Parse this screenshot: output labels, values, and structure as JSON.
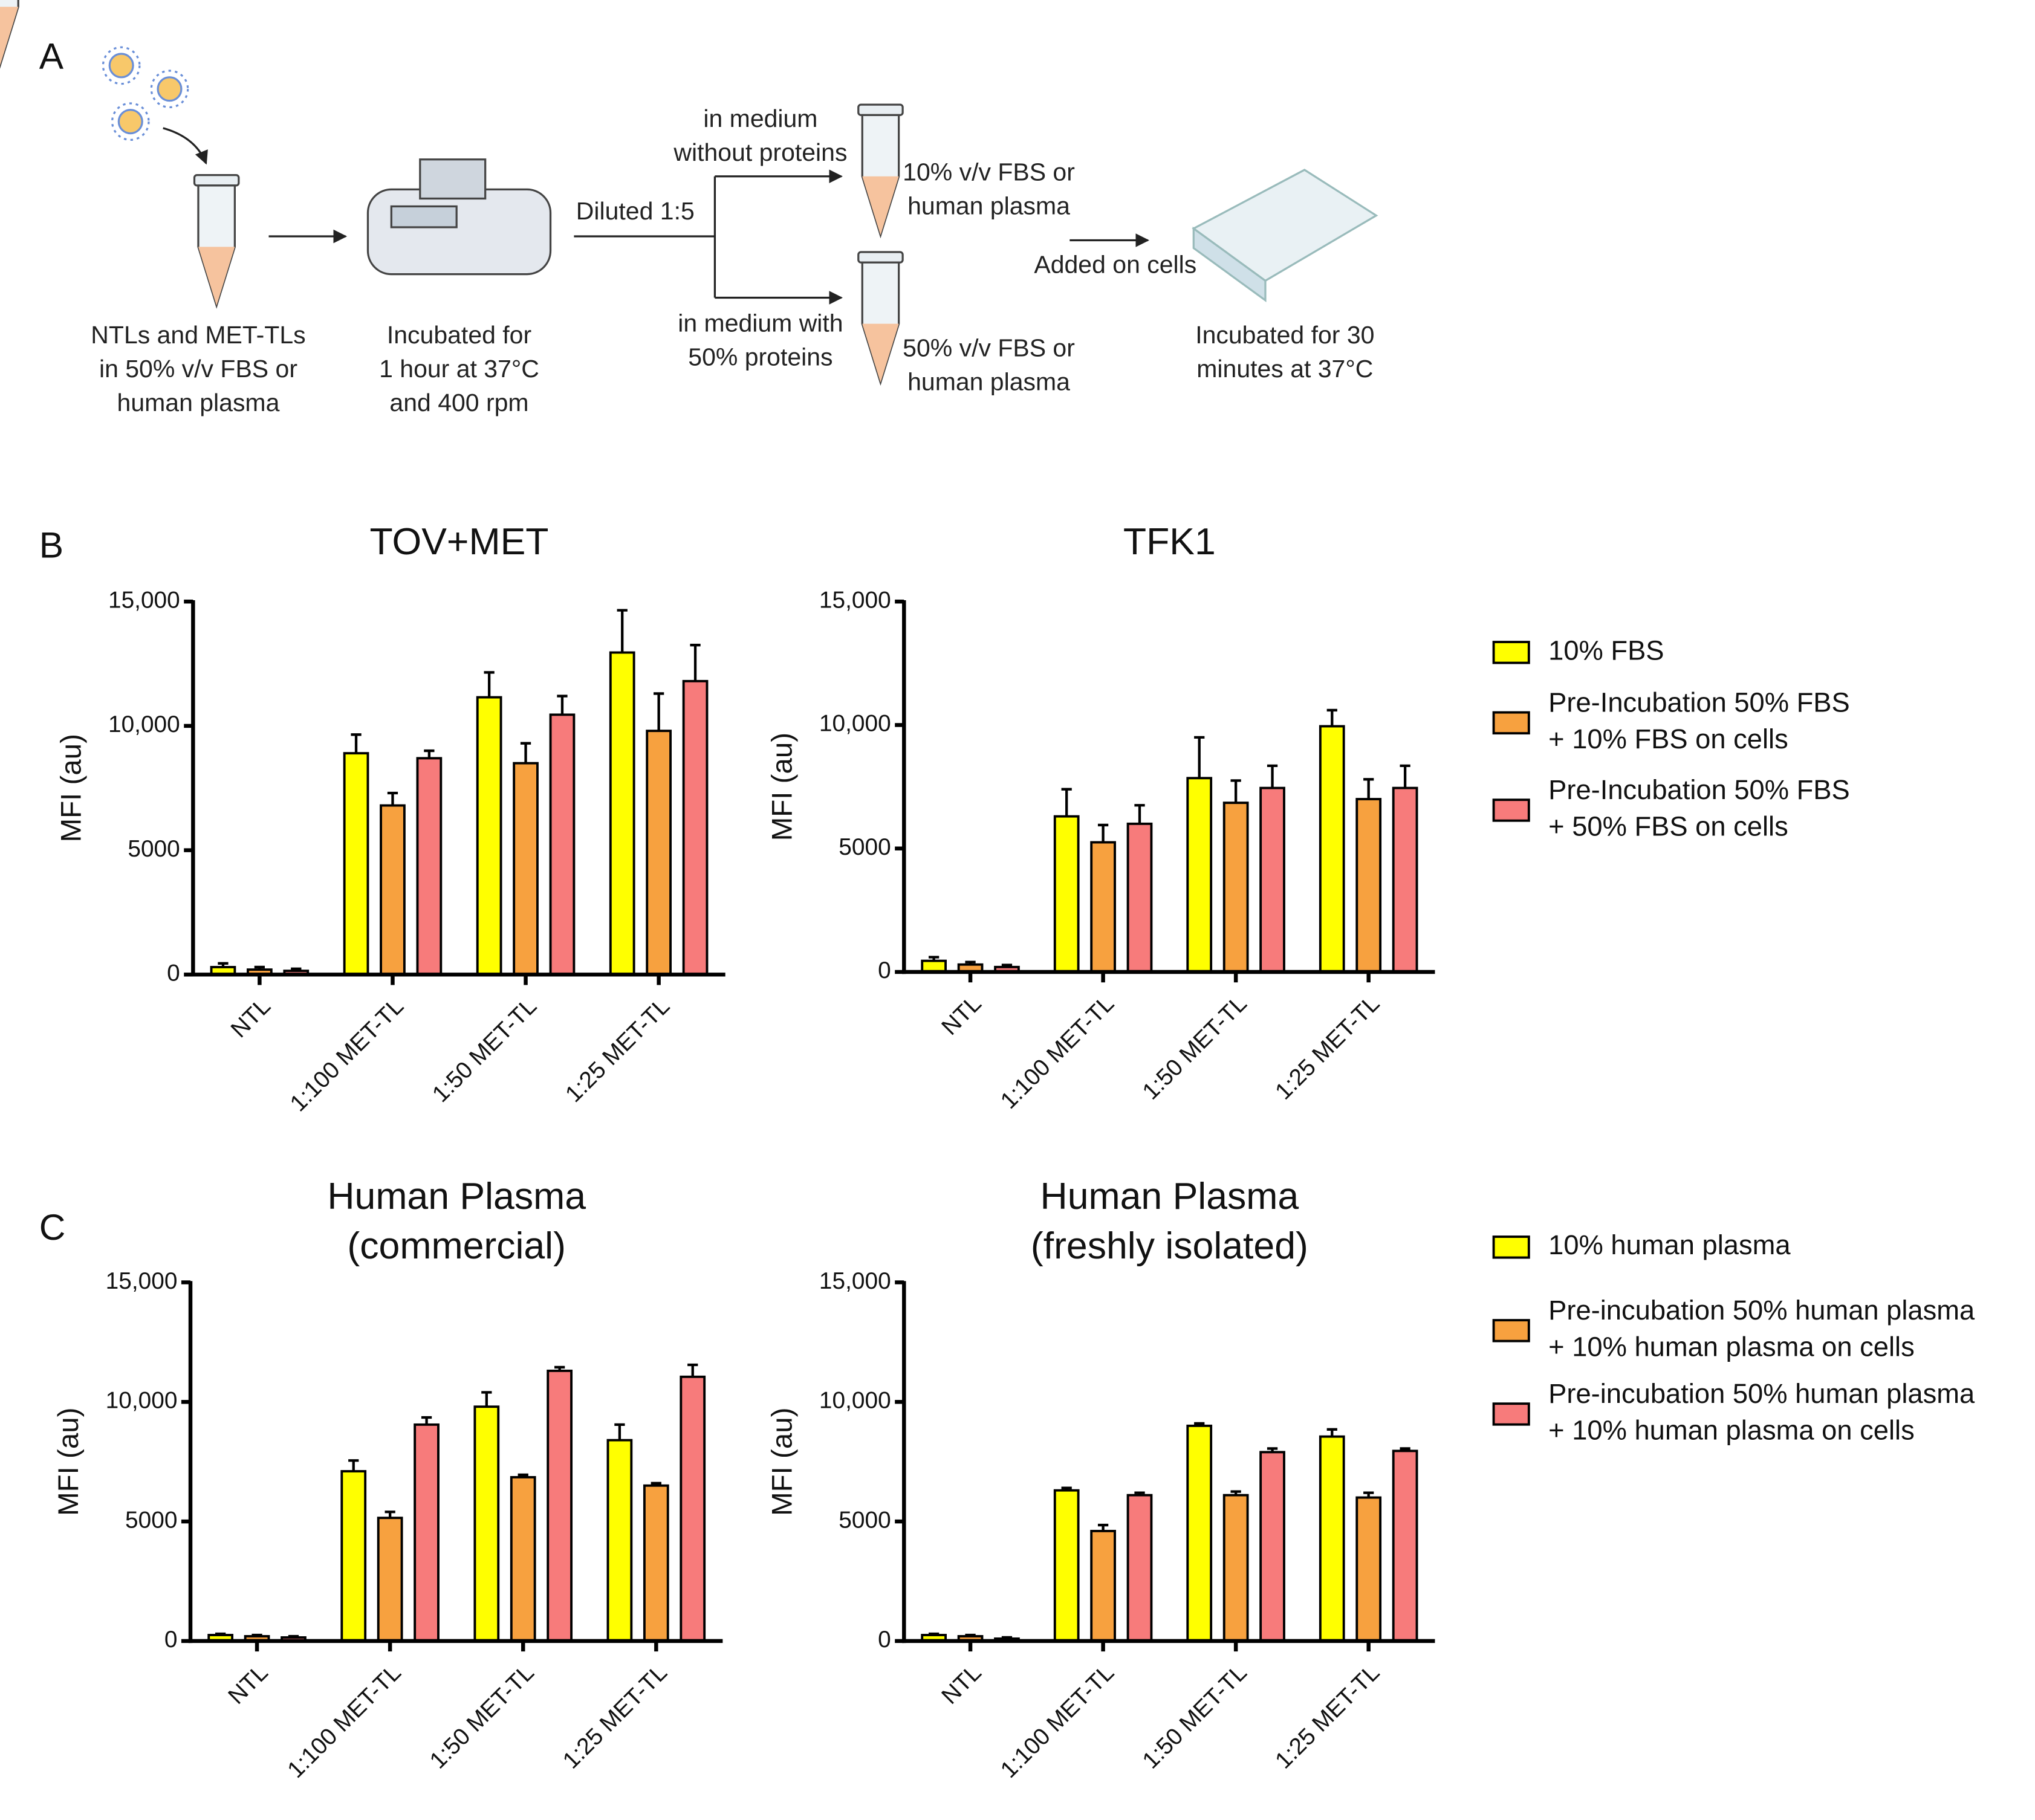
{
  "diagram": {
    "panels": [
      "A",
      "B",
      "C"
    ],
    "labels": [
      [
        "NTLs and MET-TLs",
        "in 50% v/v FBS or",
        "human plasma"
      ],
      [
        "Incubated for",
        "1 hour at 37°C",
        "and 400 rpm"
      ],
      [
        "Diluted 1:5"
      ],
      [
        "in medium",
        "without proteins"
      ],
      [
        "in medium with",
        "50% proteins"
      ],
      [
        "10% v/v FBS or",
        "human plasma"
      ],
      [
        "50% v/v FBS or",
        "human plasma"
      ],
      [
        "Added on cells"
      ],
      [
        "Incubated for 30",
        "minutes at 37°C"
      ]
    ]
  },
  "chart_data": [
    {
      "type": "bar",
      "title": [
        "TOV+MET"
      ],
      "ylabel": "MFI (au)",
      "categories": [
        "NTL",
        "1:100 MET-TL",
        "1:50 MET-TL",
        "1:25 MET-TL"
      ],
      "ylim": [
        0,
        15000
      ],
      "yticks": [
        0,
        5000,
        {
          "value": 10000,
          "label": "10,000"
        },
        {
          "value": 15000,
          "label": "15,000"
        }
      ],
      "series": [
        {
          "name": "10% FBS",
          "color": "#ffff00",
          "values": [
            300,
            8900,
            11150,
            12950
          ],
          "errors": [
            150,
            750,
            1000,
            1700
          ]
        },
        {
          "name": "Pre-Incubation 50% FBS + 10% FBS on cells",
          "color": "#f7a13f",
          "values": [
            200,
            6800,
            8500,
            9800
          ],
          "errors": [
            100,
            500,
            800,
            1500
          ]
        },
        {
          "name": "Pre-Incubation 50% FBS + 50% FBS on cells",
          "color": "#f77b7b",
          "values": [
            150,
            8700,
            10450,
            11800
          ],
          "errors": [
            80,
            300,
            750,
            1450
          ]
        }
      ]
    },
    {
      "type": "bar",
      "title": [
        "TFK1"
      ],
      "ylabel": "MFI (au)",
      "categories": [
        "NTL",
        "1:100 MET-TL",
        "1:50 MET-TL",
        "1:25 MET-TL"
      ],
      "ylim": [
        0,
        15000
      ],
      "yticks": [
        0,
        5000,
        {
          "value": 10000,
          "label": "10,000"
        },
        {
          "value": 15000,
          "label": "15,000"
        }
      ],
      "series": [
        {
          "color": "#ffff00",
          "values": [
            450,
            6300,
            7850,
            9950
          ],
          "errors": [
            150,
            1100,
            1650,
            650
          ]
        },
        {
          "color": "#f7a13f",
          "values": [
            300,
            5250,
            6850,
            7000
          ],
          "errors": [
            100,
            700,
            900,
            800
          ]
        },
        {
          "color": "#f77b7b",
          "values": [
            200,
            6000,
            7450,
            7450
          ],
          "errors": [
            80,
            750,
            900,
            900
          ]
        }
      ]
    },
    {
      "type": "bar",
      "title": [
        "Human Plasma",
        "(commercial)"
      ],
      "ylabel": "MFI (au)",
      "categories": [
        "NTL",
        "1:100 MET-TL",
        "1:50 MET-TL",
        "1:25 MET-TL"
      ],
      "ylim": [
        0,
        15000
      ],
      "yticks": [
        0,
        5000,
        {
          "value": 10000,
          "label": "10,000"
        },
        {
          "value": 15000,
          "label": "15,000"
        }
      ],
      "series": [
        {
          "name": "10% human plasma",
          "color": "#ffff00",
          "values": [
            250,
            7100,
            9800,
            8400
          ],
          "errors": [
            50,
            450,
            600,
            650
          ]
        },
        {
          "name": "Pre-incubation 50% human plasma + 10% human plasma on cells",
          "color": "#f7a13f",
          "values": [
            200,
            5150,
            6850,
            6500
          ],
          "errors": [
            50,
            250,
            100,
            100
          ]
        },
        {
          "name": "Pre-incubation 50% human plasma + 10% human plasma on cells",
          "color": "#f77b7b",
          "values": [
            150,
            9050,
            11300,
            11050
          ],
          "errors": [
            50,
            300,
            150,
            500
          ]
        }
      ]
    },
    {
      "type": "bar",
      "title": [
        "Human Plasma",
        "(freshly isolated)"
      ],
      "ylabel": "MFI (au)",
      "categories": [
        "NTL",
        "1:100 MET-TL",
        "1:50 MET-TL",
        "1:25 MET-TL"
      ],
      "ylim": [
        0,
        15000
      ],
      "yticks": [
        0,
        5000,
        {
          "value": 10000,
          "label": "10,000"
        },
        {
          "value": 15000,
          "label": "15,000"
        }
      ],
      "series": [
        {
          "color": "#ffff00",
          "values": [
            250,
            6300,
            9000,
            8550
          ],
          "errors": [
            50,
            100,
            100,
            300
          ]
        },
        {
          "color": "#f7a13f",
          "values": [
            200,
            4600,
            6100,
            6000
          ],
          "errors": [
            50,
            250,
            150,
            200
          ]
        },
        {
          "color": "#f77b7b",
          "values": [
            100,
            6100,
            7900,
            7950
          ],
          "errors": [
            50,
            100,
            150,
            100
          ]
        }
      ]
    }
  ]
}
